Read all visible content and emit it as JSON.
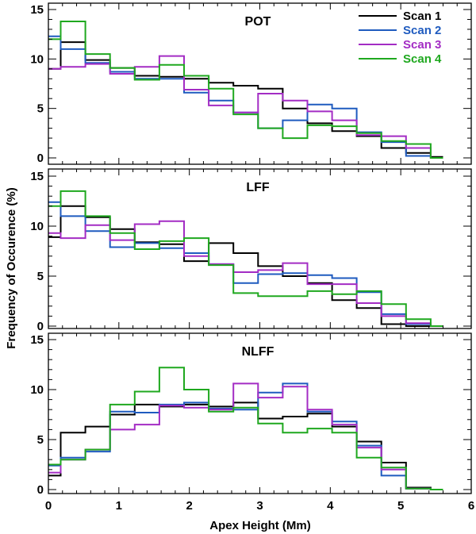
{
  "chart_data": {
    "type": "line",
    "ylabel": "Frequency of Occurence (%)",
    "xlabel": "Apex Height (Mm)",
    "xlim": [
      0,
      6
    ],
    "ylim": [
      0,
      15
    ],
    "x_ticks": [
      0,
      1,
      2,
      3,
      4,
      5,
      6
    ],
    "y_ticks": [
      0,
      5,
      10,
      15
    ],
    "bin_edges": [
      0,
      0.175,
      0.525,
      0.875,
      1.225,
      1.575,
      1.925,
      2.275,
      2.625,
      2.975,
      3.325,
      3.675,
      4.025,
      4.375,
      4.725,
      5.075,
      5.425,
      5.6
    ],
    "legend": [
      {
        "name": "Scan 1",
        "color": "#000000"
      },
      {
        "name": "Scan 2",
        "color": "#1f5bbf"
      },
      {
        "name": "Scan 3",
        "color": "#a32cc4"
      },
      {
        "name": "Scan 4",
        "color": "#1fa81f"
      }
    ],
    "panels": [
      {
        "title": "POT",
        "series": [
          {
            "name": "Scan 1",
            "values": [
              9.0,
              11.7,
              9.9,
              9.1,
              8.3,
              8.2,
              8.0,
              7.6,
              7.3,
              7.0,
              5.0,
              3.5,
              2.7,
              2.2,
              1.0,
              0.5,
              0.1
            ]
          },
          {
            "name": "Scan 2",
            "values": [
              12.3,
              11.0,
              9.6,
              8.7,
              8.0,
              8.0,
              6.6,
              5.8,
              4.6,
              3.0,
              3.8,
              5.4,
              5.0,
              2.6,
              1.6,
              0.2,
              0.0
            ]
          },
          {
            "name": "Scan 3",
            "values": [
              9.0,
              9.2,
              9.5,
              8.5,
              9.2,
              10.3,
              6.9,
              5.3,
              4.6,
              6.5,
              5.8,
              4.7,
              3.8,
              2.3,
              2.2,
              1.0,
              0.0
            ]
          },
          {
            "name": "Scan 4",
            "values": [
              12.0,
              13.8,
              10.5,
              9.1,
              7.9,
              9.4,
              8.3,
              7.0,
              4.4,
              3.0,
              2.0,
              3.3,
              3.2,
              2.5,
              1.7,
              1.4,
              0.0
            ]
          }
        ]
      },
      {
        "title": "LFF",
        "series": [
          {
            "name": "Scan 1",
            "values": [
              8.9,
              12.0,
              10.9,
              9.7,
              8.4,
              8.2,
              6.5,
              8.3,
              7.3,
              6.0,
              5.0,
              4.3,
              2.6,
              1.8,
              0.2,
              0.0,
              0.0
            ]
          },
          {
            "name": "Scan 2",
            "values": [
              12.4,
              11.0,
              9.5,
              7.9,
              8.3,
              7.8,
              7.3,
              6.2,
              4.3,
              5.2,
              5.3,
              5.1,
              4.8,
              3.4,
              1.2,
              0.2,
              0.0
            ]
          },
          {
            "name": "Scan 3",
            "values": [
              9.3,
              8.8,
              10.1,
              8.6,
              10.2,
              10.5,
              7.0,
              6.2,
              5.4,
              5.6,
              6.3,
              4.2,
              4.2,
              2.3,
              1.0,
              0.3,
              0.0
            ]
          },
          {
            "name": "Scan 4",
            "values": [
              12.0,
              13.5,
              11.0,
              9.3,
              7.7,
              8.5,
              8.8,
              6.1,
              3.3,
              3.0,
              3.0,
              3.5,
              3.2,
              3.5,
              2.2,
              0.7,
              0.0
            ]
          }
        ]
      },
      {
        "title": "NLFF",
        "series": [
          {
            "name": "Scan 1",
            "values": [
              1.4,
              5.7,
              6.3,
              7.5,
              8.5,
              8.3,
              8.5,
              8.3,
              8.7,
              7.1,
              7.3,
              7.6,
              6.3,
              4.8,
              2.7,
              0.2,
              0.0
            ]
          },
          {
            "name": "Scan 2",
            "values": [
              2.4,
              3.2,
              3.8,
              7.8,
              7.7,
              8.5,
              8.7,
              8.1,
              8.0,
              9.7,
              10.6,
              7.8,
              6.8,
              4.4,
              1.4,
              0.1,
              0.0
            ]
          },
          {
            "name": "Scan 3",
            "values": [
              1.7,
              3.0,
              4.0,
              6.0,
              6.5,
              8.4,
              8.2,
              8.0,
              10.6,
              9.2,
              10.3,
              8.0,
              6.5,
              4.2,
              2.0,
              0.1,
              0.0
            ]
          },
          {
            "name": "Scan 4",
            "values": [
              2.5,
              3.0,
              4.0,
              8.5,
              9.8,
              12.2,
              10.0,
              7.8,
              8.2,
              6.6,
              5.7,
              6.1,
              5.7,
              3.2,
              2.2,
              0.1,
              0.0
            ]
          }
        ]
      }
    ]
  }
}
